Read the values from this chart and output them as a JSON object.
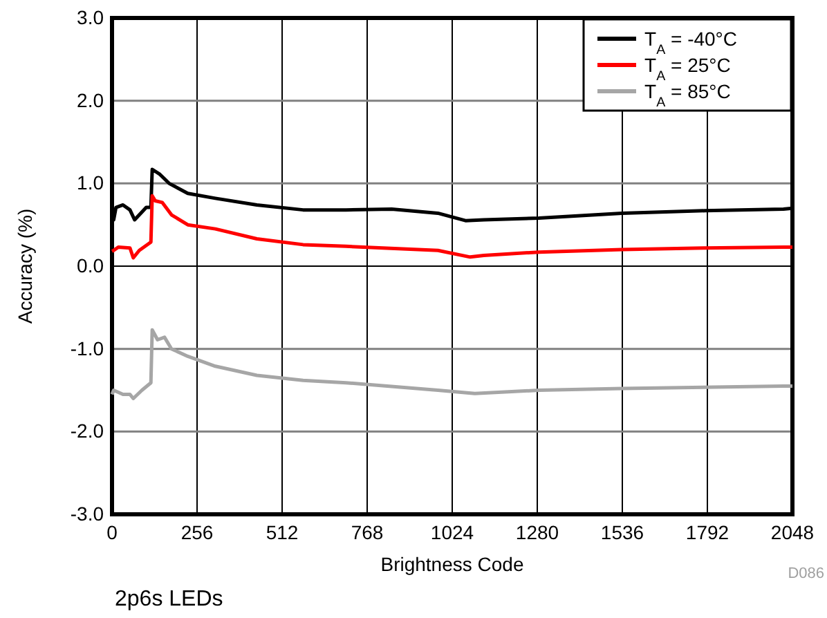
{
  "chart_data": {
    "type": "line",
    "xlabel": "Brightness Code",
    "ylabel": "Accuracy (%)",
    "xlim": [
      0,
      2048
    ],
    "xticks": [
      0,
      256,
      512,
      768,
      1024,
      1280,
      1536,
      1792,
      2048
    ],
    "ylim": [
      -3,
      3
    ],
    "yticks": [
      {
        "value": -3,
        "label": "-3.0"
      },
      {
        "value": -2,
        "label": "-2.0"
      },
      {
        "value": -1,
        "label": "-1.0"
      },
      {
        "value": 0,
        "label": "0.0"
      },
      {
        "value": 1,
        "label": "1.0"
      },
      {
        "value": 2,
        "label": "2.0"
      },
      {
        "value": 3,
        "label": "3.0"
      }
    ],
    "grid": true,
    "legend": "top right",
    "marker": "none",
    "line_style": "solid",
    "annotations": [
      "D086",
      "2p6s LEDs"
    ],
    "series": [
      {
        "name": "T$_{A}$ = -40°C",
        "color": "#000000",
        "x": [
          0,
          5,
          12,
          33,
          54,
          68,
          89,
          103,
          117,
          121,
          144,
          172,
          228,
          311,
          436,
          575,
          704,
          842,
          981,
          1064,
          1119,
          1285,
          1535,
          1785,
          2021,
          2048
        ],
        "values": [
          0.55,
          0.56,
          0.71,
          0.74,
          0.68,
          0.56,
          0.65,
          0.71,
          0.71,
          1.17,
          1.11,
          1.0,
          0.88,
          0.82,
          0.74,
          0.68,
          0.68,
          0.69,
          0.64,
          0.55,
          0.56,
          0.58,
          0.64,
          0.67,
          0.69,
          0.7
        ]
      },
      {
        "name": "T$_{A}$ = 25°C",
        "color": "#ff0000",
        "x": [
          0,
          5,
          19,
          54,
          64,
          82,
          117,
          121,
          130,
          151,
          179,
          228,
          311,
          436,
          575,
          704,
          981,
          1078,
          1119,
          1285,
          1535,
          1785,
          2021,
          2048
        ],
        "values": [
          0.18,
          0.19,
          0.23,
          0.22,
          0.1,
          0.19,
          0.29,
          0.85,
          0.79,
          0.77,
          0.62,
          0.5,
          0.45,
          0.33,
          0.26,
          0.24,
          0.19,
          0.11,
          0.13,
          0.17,
          0.2,
          0.22,
          0.23,
          0.23
        ]
      },
      {
        "name": "T$_{A}$ = 85°C",
        "color": "#a6a6a6",
        "x": [
          0,
          5,
          33,
          54,
          64,
          90,
          117,
          121,
          137,
          158,
          179,
          228,
          311,
          436,
          575,
          704,
          981,
          1092,
          1285,
          1535,
          2021,
          2048
        ],
        "values": [
          -1.55,
          -1.5,
          -1.55,
          -1.55,
          -1.6,
          -1.5,
          -1.41,
          -0.77,
          -0.89,
          -0.86,
          -1.0,
          -1.09,
          -1.21,
          -1.32,
          -1.38,
          -1.41,
          -1.5,
          -1.54,
          -1.5,
          -1.48,
          -1.45,
          -1.45
        ]
      }
    ]
  }
}
